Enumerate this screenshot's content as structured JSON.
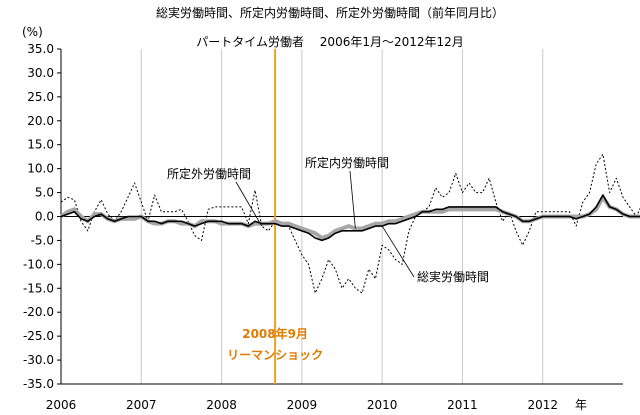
{
  "chart_data": {
    "type": "line",
    "title": "総実労働時間、所定内労働時間、所定外労働時間（前年同月比）",
    "subtitle": "パートタイム労働者　 2006年1月～2012年12月",
    "ylabel": "(%)",
    "xlabel": "年",
    "ylim": [
      -35,
      35
    ],
    "yticks": [
      "35.0",
      "30.0",
      "25.0",
      "20.0",
      "15.0",
      "10.0",
      "5.0",
      "0.0",
      "-5.0",
      "-10.0",
      "-15.0",
      "-20.0",
      "-25.0",
      "-30.0",
      "-35.0"
    ],
    "xticks": [
      "2006",
      "2007",
      "2008",
      "2009",
      "2010",
      "2011",
      "2012"
    ],
    "grid": "vertical year lines",
    "x_start": "2006-01",
    "series": [
      {
        "name": "所定外労働時間",
        "style": "dotted",
        "color": "#000000",
        "values": [
          3,
          4,
          3.5,
          -1,
          -3,
          1,
          3.5,
          0.5,
          -1,
          1,
          4,
          7,
          3,
          -1,
          4.5,
          1,
          1,
          1,
          1.5,
          -1,
          -4,
          -5,
          1.5,
          2,
          2,
          2,
          2,
          2,
          -1.5,
          5.5,
          -2,
          -3,
          -1,
          -2,
          -2,
          -5,
          -8,
          -10,
          -16,
          -13,
          -9,
          -11,
          -15,
          -13,
          -15,
          -16,
          -11,
          -13,
          -6,
          -7,
          -9,
          -10,
          -3,
          0,
          1,
          2,
          6,
          4,
          5,
          9,
          5,
          7,
          5,
          5,
          8,
          3,
          -1,
          1,
          -3,
          -6,
          -3,
          1,
          1,
          1,
          1,
          1,
          1,
          -2,
          3,
          5,
          11,
          13,
          5,
          8,
          4,
          2,
          0,
          3,
          0,
          3,
          0,
          8
        ]
      },
      {
        "name": "所定内労働時間",
        "style": "solid-gray",
        "color": "#a6a6a6",
        "values": [
          0,
          1,
          1.5,
          0,
          -1,
          0.5,
          0.5,
          -0.5,
          -1,
          -0.5,
          -0.5,
          -0.5,
          0,
          -1,
          -1.5,
          -1.5,
          -1,
          -1,
          -1.5,
          -1.5,
          -2,
          -1,
          -1,
          -1,
          -1.5,
          -1.5,
          -1.5,
          -1.5,
          -2,
          -1.5,
          -1.5,
          -1.5,
          -1,
          -1.5,
          -1.5,
          -2,
          -2.5,
          -3,
          -3.5,
          -4.5,
          -4,
          -3,
          -2.5,
          -2,
          -2.5,
          -2.5,
          -2,
          -1.5,
          -1.5,
          -1,
          -1,
          -0.5,
          0,
          0.5,
          1,
          1,
          1,
          1,
          1.5,
          1.5,
          1.5,
          1.5,
          1.5,
          1.5,
          1.5,
          1.5,
          1,
          0.5,
          0,
          -1,
          -1,
          -0.5,
          0,
          0,
          0,
          0,
          0,
          0,
          0,
          0.5,
          1.5,
          4,
          2,
          1.5,
          0.5,
          0,
          0,
          0,
          0,
          -0.5,
          0,
          -0.5
        ]
      },
      {
        "name": "総実労働時間",
        "style": "solid-black",
        "color": "#000000",
        "values": [
          0,
          0.5,
          1,
          -0.5,
          -1,
          0,
          0.5,
          -0.5,
          -1,
          -0.5,
          0,
          0,
          0,
          -1,
          -1,
          -1.5,
          -1,
          -1,
          -1,
          -1.5,
          -2,
          -1.5,
          -1,
          -1,
          -1,
          -1.5,
          -1.5,
          -1.5,
          -2,
          -1,
          -1.5,
          -1.5,
          -1.5,
          -2,
          -2,
          -2.5,
          -3,
          -3.5,
          -4.5,
          -5,
          -4.5,
          -3.5,
          -3,
          -3,
          -3,
          -3,
          -2.5,
          -2,
          -2,
          -1.5,
          -1.5,
          -1,
          -0.5,
          0,
          1,
          1,
          1.5,
          1.5,
          2,
          2,
          2,
          2,
          2,
          2,
          2,
          2,
          1,
          0.5,
          0,
          -1,
          -1,
          -0.5,
          0,
          0,
          0,
          0,
          0,
          -0.5,
          0,
          0.5,
          2,
          4.5,
          2,
          1.5,
          0.5,
          0,
          0,
          0,
          0,
          0,
          0,
          -0.5
        ]
      }
    ],
    "annotations": [
      {
        "text": "所定外労働時間",
        "target": "所定外労働時間"
      },
      {
        "text": "所定内労働時間",
        "target": "所定内労働時間"
      },
      {
        "text": "総実労働時間",
        "target": "総実労働時間"
      }
    ],
    "event": {
      "month": "2008-09",
      "color": "#f0a020",
      "label_line1": "2008年9月",
      "label_line2": "リーマンショック",
      "label_color": "#e07b00"
    }
  }
}
